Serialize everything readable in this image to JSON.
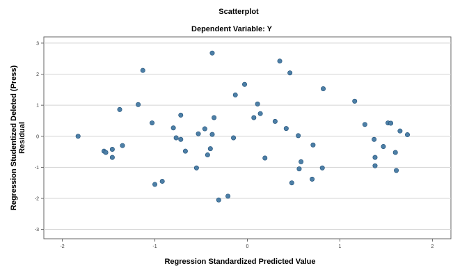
{
  "chart_data": {
    "type": "scatter",
    "title": "Scatterplot",
    "subtitle": "Dependent Variable: Y",
    "xlabel": "Regression Standardized Predicted Value",
    "ylabel_line1": "Regression Studentized Deleted (Press)",
    "ylabel_line2": "Residual",
    "xlim": [
      -2.2,
      2.2
    ],
    "ylim": [
      -3.3,
      3.2
    ],
    "xticks": [
      -2,
      -1,
      0,
      1,
      2
    ],
    "yticks": [
      -3,
      -2,
      -1,
      0,
      1,
      2,
      3
    ],
    "xtick_labels": [
      "-2",
      "-1",
      "0",
      "1",
      "2"
    ],
    "ytick_labels": [
      "-3",
      "-2",
      "-1",
      "0",
      "1",
      "2",
      "3"
    ],
    "grid": "horizontal",
    "point_color": "#4d7fa6",
    "points": [
      {
        "x": -1.83,
        "y": 0.0
      },
      {
        "x": -1.55,
        "y": -0.48
      },
      {
        "x": -1.53,
        "y": -0.52
      },
      {
        "x": -1.46,
        "y": -0.42
      },
      {
        "x": -1.46,
        "y": -0.68
      },
      {
        "x": -1.38,
        "y": 0.86
      },
      {
        "x": -1.35,
        "y": -0.3
      },
      {
        "x": -1.13,
        "y": 2.12
      },
      {
        "x": -1.18,
        "y": 1.02
      },
      {
        "x": -1.03,
        "y": 0.43
      },
      {
        "x": -1.0,
        "y": -1.55
      },
      {
        "x": -0.92,
        "y": -1.45
      },
      {
        "x": -0.8,
        "y": 0.27
      },
      {
        "x": -0.77,
        "y": -0.05
      },
      {
        "x": -0.72,
        "y": 0.68
      },
      {
        "x": -0.72,
        "y": -0.1
      },
      {
        "x": -0.67,
        "y": -0.48
      },
      {
        "x": -0.55,
        "y": -1.02
      },
      {
        "x": -0.53,
        "y": 0.08
      },
      {
        "x": -0.46,
        "y": 0.24
      },
      {
        "x": -0.43,
        "y": -0.6
      },
      {
        "x": -0.4,
        "y": -0.4
      },
      {
        "x": -0.38,
        "y": 0.06
      },
      {
        "x": -0.36,
        "y": 0.6
      },
      {
        "x": -0.38,
        "y": 2.68
      },
      {
        "x": -0.31,
        "y": -2.05
      },
      {
        "x": -0.21,
        "y": -1.93
      },
      {
        "x": -0.15,
        "y": -0.05
      },
      {
        "x": -0.13,
        "y": 1.33
      },
      {
        "x": -0.03,
        "y": 1.67
      },
      {
        "x": 0.07,
        "y": 0.6
      },
      {
        "x": 0.11,
        "y": 1.04
      },
      {
        "x": 0.14,
        "y": 0.73
      },
      {
        "x": 0.19,
        "y": -0.7
      },
      {
        "x": 0.3,
        "y": 0.48
      },
      {
        "x": 0.35,
        "y": 2.42
      },
      {
        "x": 0.42,
        "y": 0.25
      },
      {
        "x": 0.46,
        "y": 2.04
      },
      {
        "x": 0.48,
        "y": -1.5
      },
      {
        "x": 0.55,
        "y": 0.02
      },
      {
        "x": 0.56,
        "y": -1.05
      },
      {
        "x": 0.58,
        "y": -0.82
      },
      {
        "x": 0.7,
        "y": -1.38
      },
      {
        "x": 0.71,
        "y": -0.28
      },
      {
        "x": 0.81,
        "y": -1.02
      },
      {
        "x": 0.82,
        "y": 1.53
      },
      {
        "x": 1.16,
        "y": 1.13
      },
      {
        "x": 1.27,
        "y": 0.38
      },
      {
        "x": 1.37,
        "y": -0.1
      },
      {
        "x": 1.38,
        "y": -0.68
      },
      {
        "x": 1.38,
        "y": -0.95
      },
      {
        "x": 1.47,
        "y": -0.33
      },
      {
        "x": 1.52,
        "y": 0.43
      },
      {
        "x": 1.55,
        "y": 0.42
      },
      {
        "x": 1.6,
        "y": -0.52
      },
      {
        "x": 1.61,
        "y": -1.1
      },
      {
        "x": 1.65,
        "y": 0.17
      },
      {
        "x": 1.73,
        "y": 0.05
      }
    ]
  }
}
